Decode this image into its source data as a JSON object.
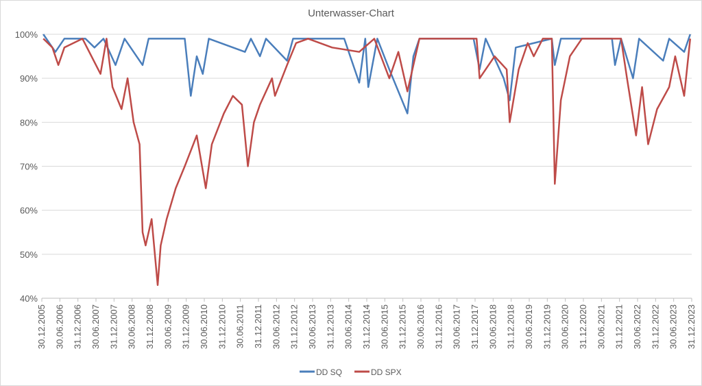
{
  "chart_data": {
    "type": "line",
    "title": "Unterwasser-Chart",
    "xlabel": "",
    "ylabel": "",
    "ylim": [
      40,
      100
    ],
    "yticks": [
      "40%",
      "50%",
      "60%",
      "70%",
      "80%",
      "90%",
      "100%"
    ],
    "ytick_values": [
      40,
      50,
      60,
      70,
      80,
      90,
      100
    ],
    "xticks": [
      "30.12.2005",
      "30.06.2006",
      "31.12.2006",
      "30.06.2007",
      "31.12.2007",
      "30.06.2008",
      "31.12.2008",
      "30.06.2009",
      "31.12.2009",
      "30.06.2010",
      "31.12.2010",
      "30.06.2011",
      "31.12.2011",
      "30.06.2012",
      "31.12.2012",
      "30.06.2013",
      "31.12.2013",
      "30.06.2014",
      "31.12.2014",
      "30.06.2015",
      "31.12.2015",
      "30.06.2016",
      "31.12.2016",
      "30.06.2017",
      "31.12.2017",
      "30.06.2018",
      "31.12.2018",
      "30.06.2019",
      "31.12.2019",
      "30.06.2020",
      "31.12.2020",
      "30.06.2021",
      "31.12.2021",
      "30.06.2022",
      "31.12.2022",
      "30.06.2023",
      "31.12.2023"
    ],
    "grid": true,
    "legend": "bottom",
    "series": [
      {
        "name": "DD SQ",
        "color": "#4a7ebb",
        "points": [
          [
            "2006-01",
            100
          ],
          [
            "2006-05",
            96
          ],
          [
            "2006-08",
            99
          ],
          [
            "2007-03",
            99
          ],
          [
            "2007-06",
            97
          ],
          [
            "2007-09",
            99
          ],
          [
            "2008-01",
            93
          ],
          [
            "2008-04",
            99
          ],
          [
            "2008-10",
            93
          ],
          [
            "2008-12",
            99
          ],
          [
            "2009-12",
            99
          ],
          [
            "2010-02",
            86
          ],
          [
            "2010-04",
            95
          ],
          [
            "2010-06",
            91
          ],
          [
            "2010-08",
            99
          ],
          [
            "2011-08",
            96
          ],
          [
            "2011-10",
            99
          ],
          [
            "2012-01",
            95
          ],
          [
            "2012-03",
            99
          ],
          [
            "2012-10",
            94
          ],
          [
            "2012-12",
            99
          ],
          [
            "2014-05",
            99
          ],
          [
            "2014-10",
            89
          ],
          [
            "2014-12",
            99
          ],
          [
            "2015-01",
            88
          ],
          [
            "2015-04",
            99
          ],
          [
            "2015-08",
            92
          ],
          [
            "2016-02",
            82
          ],
          [
            "2016-04",
            95
          ],
          [
            "2016-06",
            99
          ],
          [
            "2017-12",
            99
          ],
          [
            "2018-02",
            92
          ],
          [
            "2018-04",
            99
          ],
          [
            "2018-10",
            90
          ],
          [
            "2018-12",
            85
          ],
          [
            "2019-02",
            97
          ],
          [
            "2020-02",
            99
          ],
          [
            "2020-03",
            93
          ],
          [
            "2020-05",
            99
          ],
          [
            "2021-10",
            99
          ],
          [
            "2021-11",
            93
          ],
          [
            "2022-01",
            99
          ],
          [
            "2022-05",
            90
          ],
          [
            "2022-07",
            99
          ],
          [
            "2023-03",
            94
          ],
          [
            "2023-05",
            99
          ],
          [
            "2023-10",
            96
          ],
          [
            "2023-12",
            100
          ]
        ]
      },
      {
        "name": "DD SPX",
        "color": "#be4b48",
        "points": [
          [
            "2006-01",
            99
          ],
          [
            "2006-04",
            97
          ],
          [
            "2006-06",
            93
          ],
          [
            "2006-08",
            97
          ],
          [
            "2007-02",
            99
          ],
          [
            "2007-08",
            91
          ],
          [
            "2007-10",
            99
          ],
          [
            "2007-12",
            88
          ],
          [
            "2008-03",
            83
          ],
          [
            "2008-05",
            90
          ],
          [
            "2008-07",
            80
          ],
          [
            "2008-09",
            75
          ],
          [
            "2008-10",
            55
          ],
          [
            "2008-11",
            52
          ],
          [
            "2009-01",
            58
          ],
          [
            "2009-03",
            43
          ],
          [
            "2009-04",
            52
          ],
          [
            "2009-06",
            58
          ],
          [
            "2009-09",
            65
          ],
          [
            "2009-12",
            70
          ],
          [
            "2010-04",
            77
          ],
          [
            "2010-07",
            65
          ],
          [
            "2010-09",
            75
          ],
          [
            "2011-01",
            82
          ],
          [
            "2011-04",
            86
          ],
          [
            "2011-07",
            84
          ],
          [
            "2011-09",
            70
          ],
          [
            "2011-11",
            80
          ],
          [
            "2012-01",
            84
          ],
          [
            "2012-05",
            90
          ],
          [
            "2012-06",
            86
          ],
          [
            "2012-10",
            93
          ],
          [
            "2013-01",
            98
          ],
          [
            "2013-05",
            99
          ],
          [
            "2014-01",
            97
          ],
          [
            "2014-10",
            96
          ],
          [
            "2015-03",
            99
          ],
          [
            "2015-08",
            90
          ],
          [
            "2015-11",
            96
          ],
          [
            "2016-02",
            87
          ],
          [
            "2016-06",
            99
          ],
          [
            "2018-01",
            99
          ],
          [
            "2018-02",
            90
          ],
          [
            "2018-07",
            95
          ],
          [
            "2018-11",
            92
          ],
          [
            "2018-12",
            80
          ],
          [
            "2019-03",
            92
          ],
          [
            "2019-06",
            98
          ],
          [
            "2019-08",
            95
          ],
          [
            "2019-11",
            99
          ],
          [
            "2020-02",
            99
          ],
          [
            "2020-03",
            66
          ],
          [
            "2020-05",
            85
          ],
          [
            "2020-08",
            95
          ],
          [
            "2020-12",
            99
          ],
          [
            "2022-01",
            99
          ],
          [
            "2022-03",
            90
          ],
          [
            "2022-06",
            77
          ],
          [
            "2022-08",
            88
          ],
          [
            "2022-10",
            75
          ],
          [
            "2023-01",
            83
          ],
          [
            "2023-05",
            88
          ],
          [
            "2023-07",
            95
          ],
          [
            "2023-10",
            86
          ],
          [
            "2023-12",
            99
          ]
        ]
      }
    ]
  }
}
